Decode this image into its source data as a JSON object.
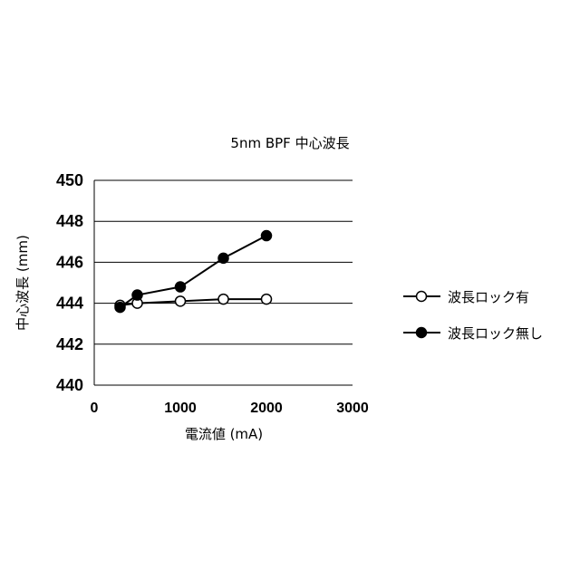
{
  "chart_data": {
    "type": "line",
    "title": "5nm BPF 中心波長",
    "xlabel": "電流値 (mA)",
    "ylabel": "中心波長 (mm)",
    "xlim": [
      0,
      3000
    ],
    "ylim": [
      440,
      450
    ],
    "xticks": [
      "0",
      "1000",
      "2000",
      "3000"
    ],
    "yticks": [
      "440",
      "442",
      "444",
      "446",
      "448",
      "450"
    ],
    "grid": "horizontal",
    "legend": "right",
    "series": [
      {
        "name": "波長ロック有",
        "marker": "open-circle",
        "points": [
          [
            300,
            443.9
          ],
          [
            500,
            444.0
          ],
          [
            1000,
            444.1
          ],
          [
            1500,
            444.2
          ],
          [
            2000,
            444.2
          ]
        ]
      },
      {
        "name": "波長ロック無し",
        "marker": "filled-circle",
        "points": [
          [
            300,
            443.8
          ],
          [
            500,
            444.4
          ],
          [
            1000,
            444.8
          ],
          [
            1500,
            446.2
          ],
          [
            2000,
            447.3
          ]
        ]
      }
    ]
  }
}
